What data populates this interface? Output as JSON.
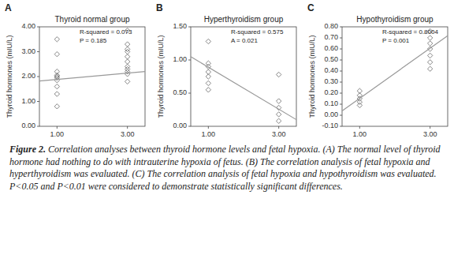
{
  "chart_data": [
    {
      "type": "scatter",
      "panel_label": "A",
      "title": "Thyroid normal group",
      "annotation": "R-squared = 0.073\nP = 0.185",
      "y_label": "Thyroid hormones  (mIU/L)",
      "xlim": [
        0.5,
        3.5
      ],
      "ylim": [
        0.0,
        4.0
      ],
      "xticks": [
        {
          "value": 1.0,
          "label": "1.00"
        },
        {
          "value": 3.0,
          "label": "3.00"
        }
      ],
      "yticks": [
        {
          "value": 0.0,
          "label": "0.00"
        },
        {
          "value": 1.0,
          "label": "1.00"
        },
        {
          "value": 2.0,
          "label": "2.00"
        },
        {
          "value": 3.0,
          "label": "3.00"
        },
        {
          "value": 4.0,
          "label": "4.00"
        }
      ],
      "series": [
        {
          "type": "scatter",
          "marker": "diamond",
          "color": "#777777",
          "x": [
            1.0,
            1.0,
            1.0,
            1.0,
            1.0,
            1.0,
            1.0,
            1.0,
            1.0,
            1.0,
            3.0,
            3.0,
            3.0,
            3.0,
            3.0,
            3.0,
            3.0,
            3.0,
            3.0,
            3.0,
            3.0
          ],
          "values": [
            3.5,
            2.9,
            2.2,
            2.05,
            2.0,
            1.95,
            1.85,
            1.6,
            1.3,
            0.8,
            3.85,
            3.3,
            3.1,
            3.0,
            2.8,
            2.6,
            2.4,
            2.3,
            2.2,
            2.1,
            1.8
          ]
        },
        {
          "type": "line",
          "color": "#999999",
          "x": [
            0.5,
            3.5
          ],
          "values": [
            1.82,
            2.2
          ]
        }
      ]
    },
    {
      "type": "scatter",
      "panel_label": "B",
      "title": "Hyperthyroidism group",
      "annotation": "R-squared = 0.575\nA = 0.021",
      "y_label": "Thyroid hormones  (mIU/L)",
      "xlim": [
        0.5,
        3.5
      ],
      "ylim": [
        0.0,
        1.5
      ],
      "xticks": [
        {
          "value": 1.0,
          "label": "1.00"
        },
        {
          "value": 3.0,
          "label": "3.00"
        }
      ],
      "yticks": [
        {
          "value": 0.0,
          "label": "0.00"
        },
        {
          "value": 0.5,
          "label": "0.50"
        },
        {
          "value": 1.0,
          "label": "1.00"
        },
        {
          "value": 1.5,
          "label": "1.50"
        }
      ],
      "series": [
        {
          "type": "scatter",
          "marker": "diamond",
          "color": "#777777",
          "x": [
            1.0,
            1.0,
            1.0,
            1.0,
            1.0,
            1.0,
            1.0,
            3.0,
            3.0,
            3.0,
            3.0,
            3.0
          ],
          "values": [
            1.28,
            0.95,
            0.9,
            0.82,
            0.75,
            0.65,
            0.55,
            0.78,
            0.38,
            0.28,
            0.18,
            0.08
          ]
        },
        {
          "type": "line",
          "color": "#999999",
          "x": [
            0.5,
            3.5
          ],
          "values": [
            1.05,
            0.1
          ]
        }
      ]
    },
    {
      "type": "scatter",
      "panel_label": "C",
      "title": "Hypothyroidism group",
      "annotation": "R-squared = 0.8004\nP = 0.001",
      "y_label": "Thyroid hormones  (mIU/L)",
      "xlim": [
        0.5,
        3.5
      ],
      "ylim": [
        -0.1,
        0.8
      ],
      "xticks": [
        {
          "value": 1.0,
          "label": "1.00"
        },
        {
          "value": 3.0,
          "label": "3.00"
        }
      ],
      "yticks": [
        {
          "value": -0.1,
          "label": "-0.10"
        },
        {
          "value": 0.0,
          "label": "0.00"
        },
        {
          "value": 0.1,
          "label": "0.10"
        },
        {
          "value": 0.2,
          "label": "0.20"
        },
        {
          "value": 0.3,
          "label": "0.30"
        },
        {
          "value": 0.4,
          "label": "0.40"
        },
        {
          "value": 0.5,
          "label": "0.50"
        },
        {
          "value": 0.6,
          "label": "0.60"
        },
        {
          "value": 0.7,
          "label": "0.70"
        },
        {
          "value": 0.8,
          "label": "0.80"
        }
      ],
      "series": [
        {
          "type": "scatter",
          "marker": "diamond",
          "color": "#777777",
          "x": [
            1.0,
            1.0,
            1.0,
            1.0,
            1.0,
            3.0,
            3.0,
            3.0,
            3.0,
            3.0,
            3.0,
            3.0
          ],
          "values": [
            0.22,
            0.18,
            0.15,
            0.12,
            0.09,
            0.76,
            0.7,
            0.65,
            0.6,
            0.54,
            0.48,
            0.42
          ]
        },
        {
          "type": "line",
          "color": "#999999",
          "x": [
            0.5,
            3.5
          ],
          "values": [
            0.04,
            0.72
          ]
        }
      ]
    }
  ],
  "caption": {
    "bold": "Figure 2.",
    "text": "  Correlation analyses between thyroid hormone levels and fetal hypoxia. (A) The normal level of thyroid hormone had nothing to do with intrauterine hypoxia of fetus. (B) The correlation analysis of fetal hypoxia and hyperthyroidism was evaluated. (C) The correlation analysis of fetal hypoxia and hypothyroidism was evaluated. P<0.05 and P<0.01 were considered to demonstrate statistically significant differences."
  }
}
